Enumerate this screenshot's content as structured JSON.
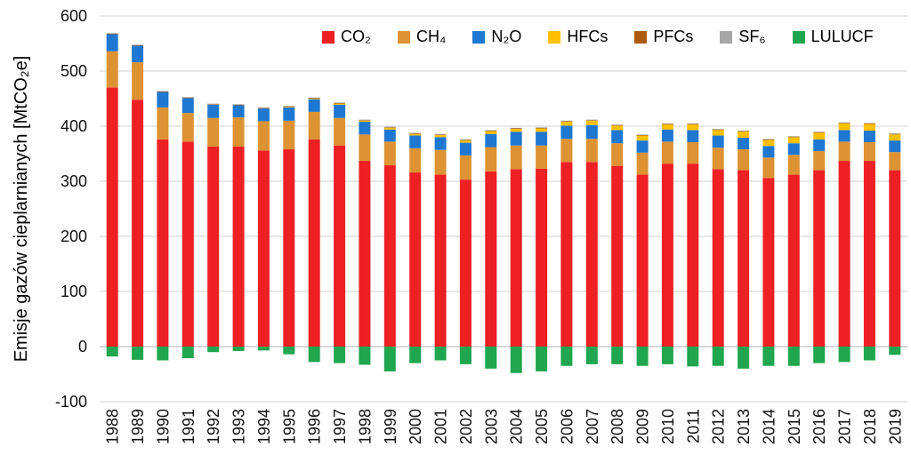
{
  "chart_data": {
    "type": "bar",
    "stacked": true,
    "title": "",
    "xlabel": "",
    "ylabel": "Emisje gazów cieplarnianych [MtCO₂e]",
    "ylim": [
      -100,
      600
    ],
    "yticks": [
      -100,
      0,
      100,
      200,
      300,
      400,
      500,
      600
    ],
    "grid": true,
    "legend_position": "top",
    "categories": [
      1988,
      1989,
      1990,
      1991,
      1992,
      1993,
      1994,
      1995,
      1996,
      1997,
      1998,
      1999,
      2000,
      2001,
      2002,
      2003,
      2004,
      2005,
      2006,
      2007,
      2008,
      2009,
      2010,
      2011,
      2012,
      2013,
      2014,
      2015,
      2016,
      2017,
      2018,
      2019
    ],
    "series": [
      {
        "name": "CO₂",
        "color": "#ed2024",
        "values": [
          470,
          448,
          376,
          372,
          363,
          363,
          356,
          358,
          376,
          365,
          337,
          329,
          316,
          312,
          303,
          318,
          322,
          323,
          335,
          335,
          328,
          312,
          332,
          332,
          322,
          320,
          306,
          312,
          320,
          337,
          337,
          320
        ]
      },
      {
        "name": "CH₄",
        "color": "#dd9333",
        "values": [
          66,
          68,
          58,
          52,
          52,
          53,
          53,
          52,
          50,
          50,
          48,
          43,
          44,
          45,
          44,
          44,
          43,
          42,
          42,
          42,
          41,
          40,
          40,
          39,
          39,
          38,
          37,
          36,
          35,
          35,
          34,
          33
        ]
      },
      {
        "name": "N₂O",
        "color": "#1e78d2",
        "values": [
          31,
          30,
          28,
          27,
          24,
          22,
          23,
          24,
          23,
          24,
          23,
          22,
          23,
          23,
          23,
          24,
          25,
          25,
          24,
          25,
          24,
          22,
          22,
          22,
          22,
          21,
          21,
          21,
          21,
          21,
          21,
          21
        ]
      },
      {
        "name": "HFCs",
        "color": "#ffc000",
        "values": [
          0,
          0,
          0,
          0,
          0,
          0,
          0,
          1,
          1,
          2,
          2,
          3,
          3,
          4,
          4,
          5,
          5,
          6,
          7,
          8,
          8,
          9,
          9,
          10,
          10,
          11,
          11,
          11,
          12,
          12,
          12,
          11
        ]
      },
      {
        "name": "PFCs",
        "color": "#ac5c10",
        "values": [
          1,
          1,
          1,
          1,
          1,
          1,
          1,
          1,
          1,
          1,
          1,
          1,
          1,
          1,
          1,
          1,
          1,
          1,
          1,
          1,
          1,
          1,
          1,
          1,
          1,
          1,
          1,
          1,
          1,
          1,
          1,
          1
        ]
      },
      {
        "name": "SF₆",
        "color": "#a6a6a6",
        "values": [
          1,
          1,
          1,
          1,
          1,
          1,
          1,
          1,
          1,
          1,
          1,
          1,
          1,
          1,
          1,
          1,
          1,
          1,
          1,
          1,
          1,
          1,
          1,
          1,
          1,
          1,
          1,
          1,
          1,
          1,
          1,
          1
        ]
      },
      {
        "name": "LULUCF",
        "color": "#1fa64e",
        "values": [
          -18,
          -24,
          -25,
          -21,
          -10,
          -8,
          -7,
          -14,
          -28,
          -30,
          -33,
          -45,
          -30,
          -25,
          -32,
          -40,
          -48,
          -45,
          -35,
          -32,
          -32,
          -35,
          -32,
          -36,
          -35,
          -40,
          -35,
          -35,
          -30,
          -28,
          -25,
          -15
        ]
      }
    ]
  }
}
